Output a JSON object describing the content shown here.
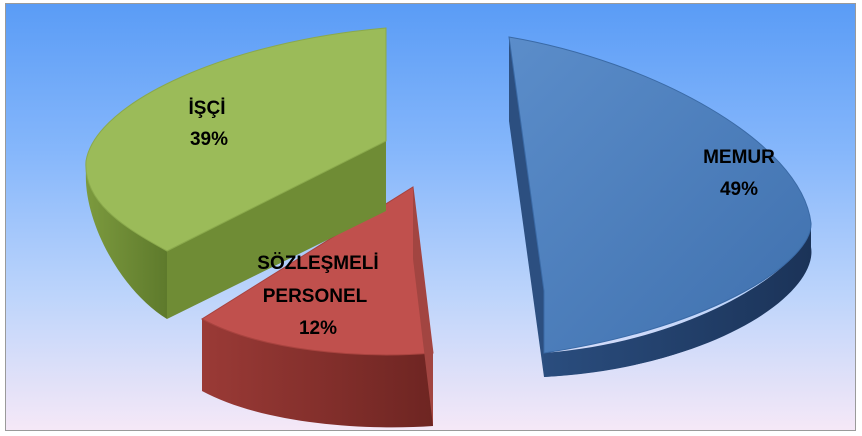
{
  "chart_data": {
    "type": "pie",
    "title": "",
    "style": "3d-exploded",
    "slices": [
      {
        "label": "MEMUR",
        "percent_label": "49%",
        "value": 49,
        "color": "#4f81bd"
      },
      {
        "label": "SÖZLEŞMELİ PERSONEL",
        "label_lines": [
          "SÖZLEŞMELİ",
          "PERSONEL"
        ],
        "percent_label": "12%",
        "value": 12,
        "color": "#c0504d"
      },
      {
        "label": "İŞÇİ",
        "percent_label": "39%",
        "value": 39,
        "color": "#9bbb59"
      }
    ],
    "legend": "none"
  }
}
